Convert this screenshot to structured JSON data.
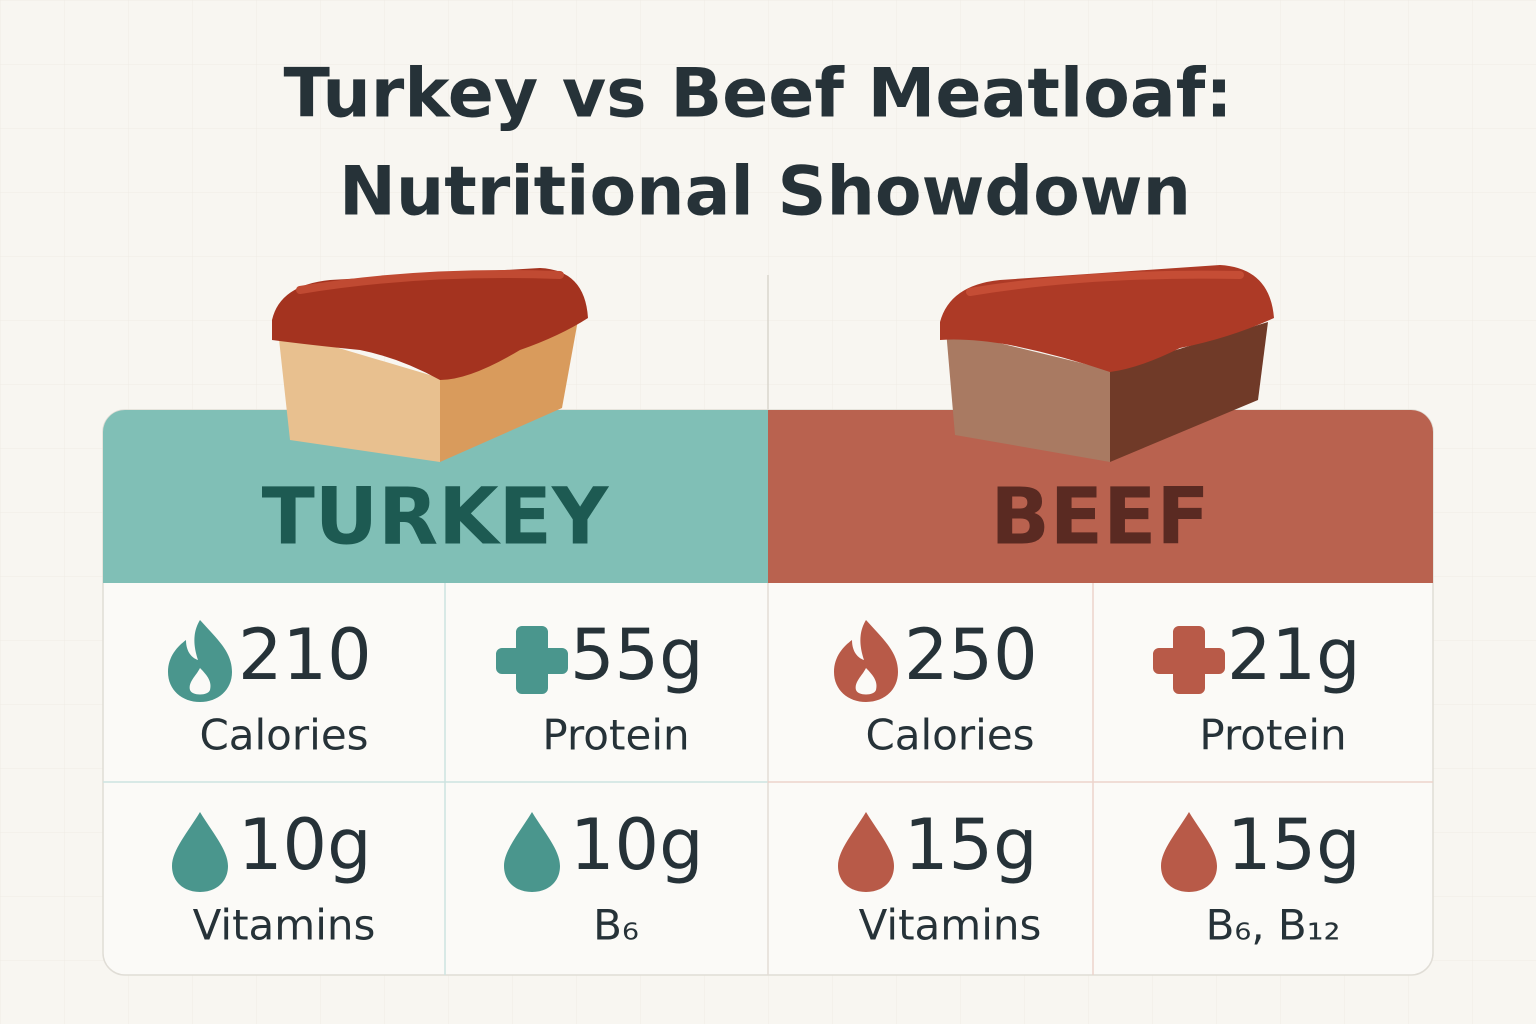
{
  "title": {
    "line1": "Turkey vs Beef Meatloaf:",
    "line2": "Nutritional Showdown"
  },
  "panels": [
    {
      "name": "TURKEY",
      "stats": [
        {
          "value": "210",
          "label": "Calories"
        },
        {
          "value": "55g",
          "label": "Protein"
        },
        {
          "value": "10g",
          "label": "Vitamins"
        },
        {
          "value": "10g",
          "label": "B₆"
        }
      ]
    },
    {
      "name": "BEEF",
      "stats": [
        {
          "value": "250",
          "label": "Calories"
        },
        {
          "value": "21g",
          "label": "Protein"
        },
        {
          "value": "15g",
          "label": "Vitamins"
        },
        {
          "value": "15g",
          "label": "B₆, B₁₂"
        }
      ]
    }
  ]
}
